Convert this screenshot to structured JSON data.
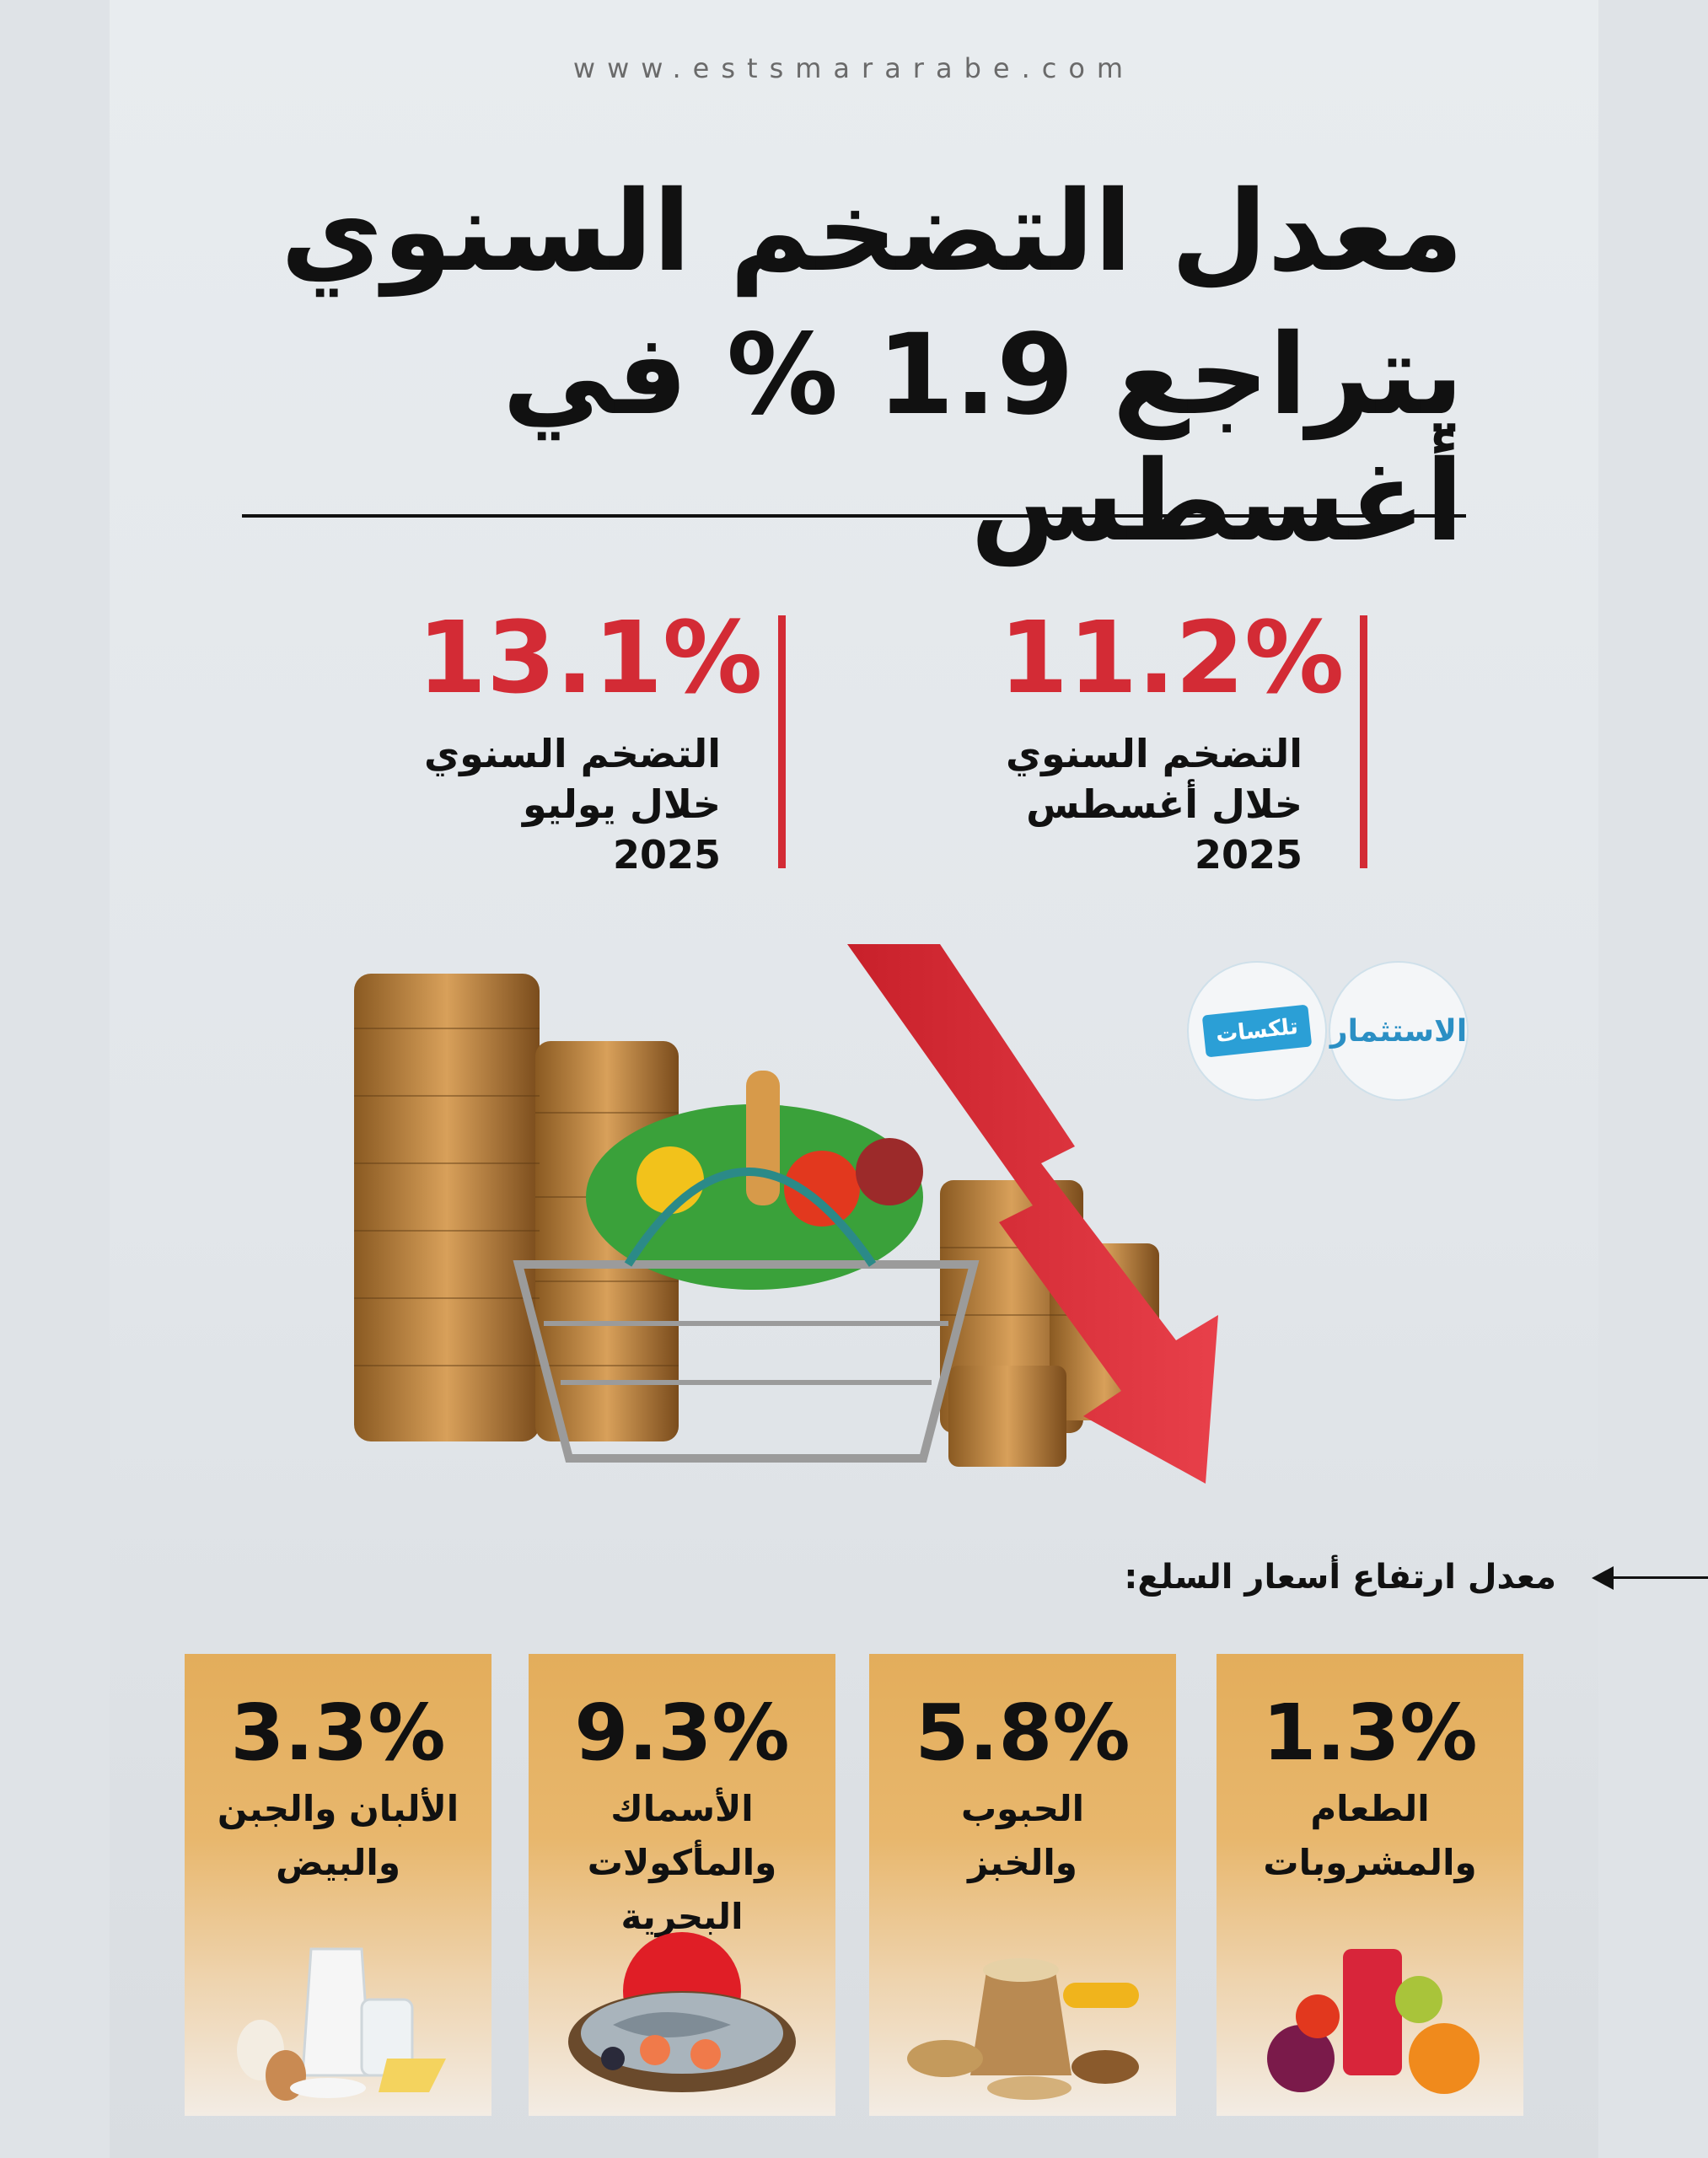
{
  "site": "www.estsmararabe.com",
  "headline": {
    "line1": "معدل التضخم السنوي",
    "line2": "يتراجع 1.9 % في أغسطس"
  },
  "stats": [
    {
      "value": "11.2%",
      "label_line1": "التضخم السنوي",
      "label_line2": "خلال أغسطس",
      "label_line3": "2025"
    },
    {
      "value": "13.1%",
      "label_line1": "التضخم السنوي",
      "label_line2": "خلال يوليو",
      "label_line3": "2025"
    }
  ],
  "logos": {
    "logo1": "الاستثمار",
    "logo2": "تلكسات"
  },
  "subheading": "معدل ارتفاع أسعار السلع:",
  "categories": [
    {
      "value": "1.3%",
      "name_line1": "الطعام",
      "name_line2": "والمشروبات"
    },
    {
      "value": "5.8%",
      "name_line1": "الحبوب",
      "name_line2": "والخبز"
    },
    {
      "value": "9.3%",
      "name_line1": "الأسماك",
      "name_line2": "والمأكولات البحرية"
    },
    {
      "value": "3.3%",
      "name_line1": "الألبان والجبن",
      "name_line2": "والبيض"
    }
  ],
  "colors": {
    "accent_red": "#d32b35",
    "card_gold": "#e3ad5b"
  },
  "icons": [
    "coin-stack",
    "grocery-basket",
    "down-arrow",
    "juice-fruits",
    "grains-bread",
    "seafood",
    "dairy"
  ]
}
